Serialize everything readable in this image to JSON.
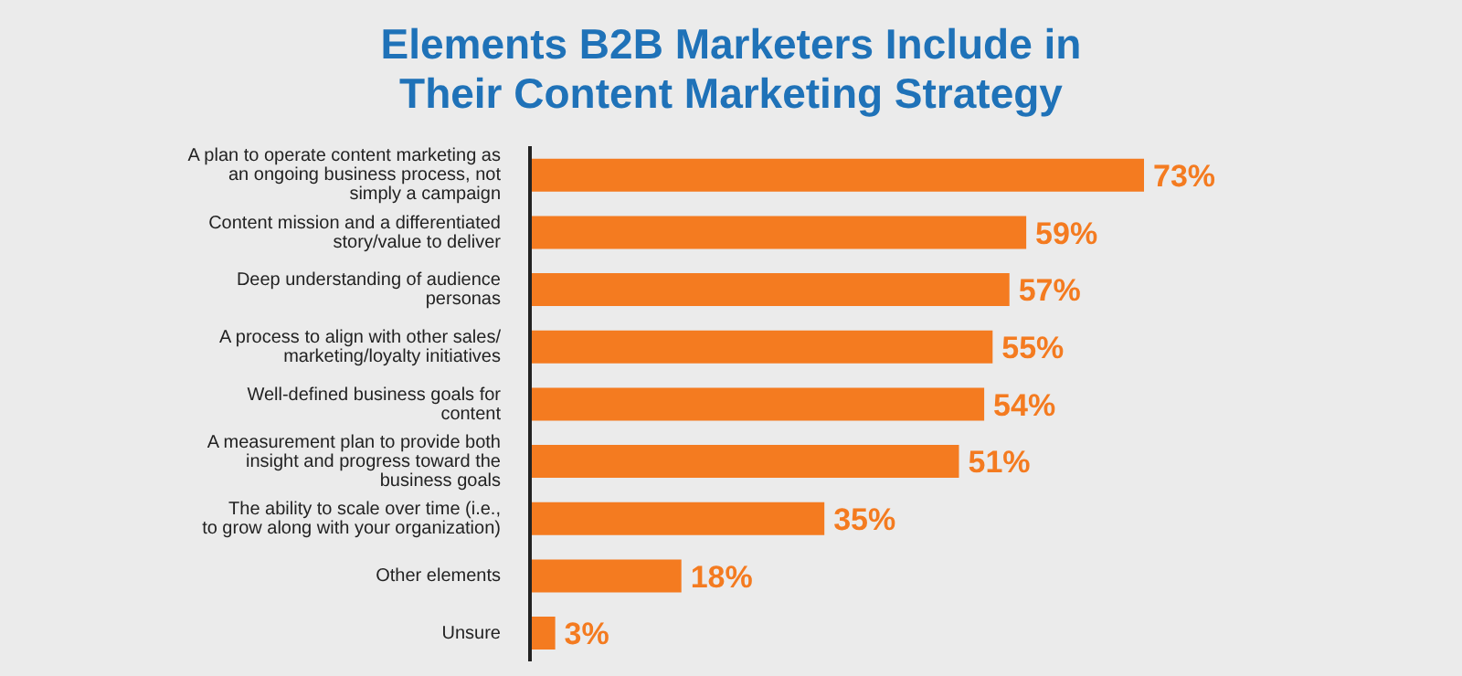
{
  "chart_data": {
    "type": "bar",
    "orientation": "horizontal",
    "title": "Elements B2B Marketers Include in Their Content Marketing Strategy",
    "categories": [
      "A plan to operate content marketing as an ongoing business process, not simply a campaign",
      "Content mission and a differentiated story/value to deliver",
      "Deep understanding of audience personas",
      "A process to align with other sales/ marketing/loyalty initiatives",
      "Well-defined business goals for content",
      "A measurement plan to provide both insight and progress toward the business goals",
      "The ability to scale over time (i.e., to grow along with your organization)",
      "Other elements",
      "Unsure"
    ],
    "values": [
      73,
      59,
      57,
      55,
      54,
      51,
      35,
      18,
      3
    ],
    "value_labels": [
      "73%",
      "59%",
      "57%",
      "55%",
      "54%",
      "51%",
      "35%",
      "18%",
      "3%"
    ],
    "color": "#f47b20"
  }
}
